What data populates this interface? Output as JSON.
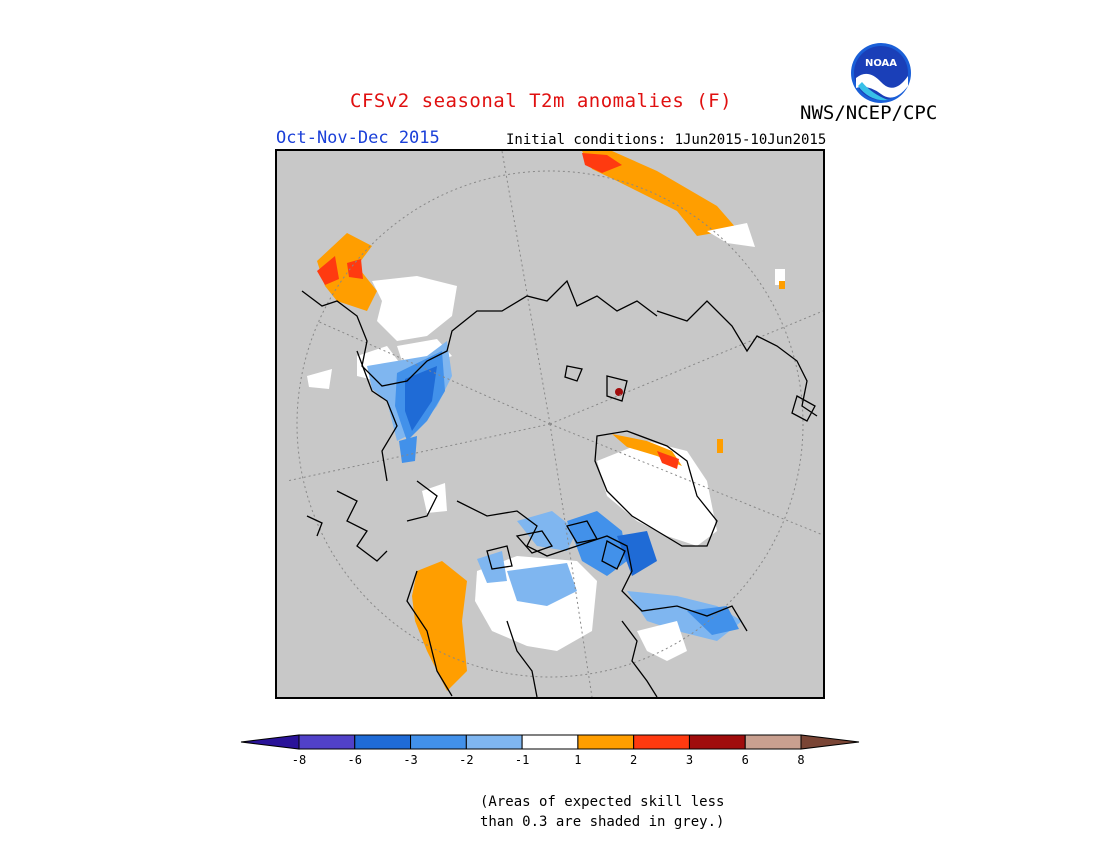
{
  "title": "CFSv2 seasonal T2m anomalies (F)",
  "agency": "NWS/NCEP/CPC",
  "logo_text": "NOAA",
  "season": "Oct-Nov-Dec 2015",
  "initial_conditions": "Initial conditions: 1Jun2015-10Jun2015",
  "colorbar": {
    "ticks": [
      "-8",
      "-6",
      "-3",
      "-2",
      "-1",
      "1",
      "2",
      "3",
      "6",
      "8"
    ],
    "colors": [
      "#2a1399",
      "#5141c8",
      "#1f6bd6",
      "#4291ea",
      "#7fb6f0",
      "#ffffff",
      "#ff9e00",
      "#ff3a10",
      "#a00c0c",
      "#c9a090",
      "#7a4535"
    ]
  },
  "note_line1": "(Areas of expected skill less",
  "note_line2": "than 0.3 are shaded in grey.)",
  "colors": {
    "title": "#e01010",
    "season": "#1a3fd8",
    "grey_mask": "#c8c8c8"
  }
}
